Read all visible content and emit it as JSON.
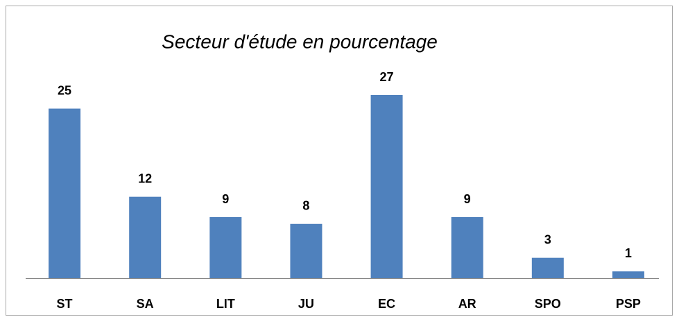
{
  "chart_data": {
    "type": "bar",
    "title": "Secteur d'étude en pourcentage",
    "categories": [
      "ST",
      "SA",
      "LIT",
      "JU",
      "EC",
      "AR",
      "SPO",
      "PSP"
    ],
    "values": [
      25,
      12,
      9,
      8,
      27,
      9,
      3,
      1
    ],
    "color": "#4f81bd"
  }
}
